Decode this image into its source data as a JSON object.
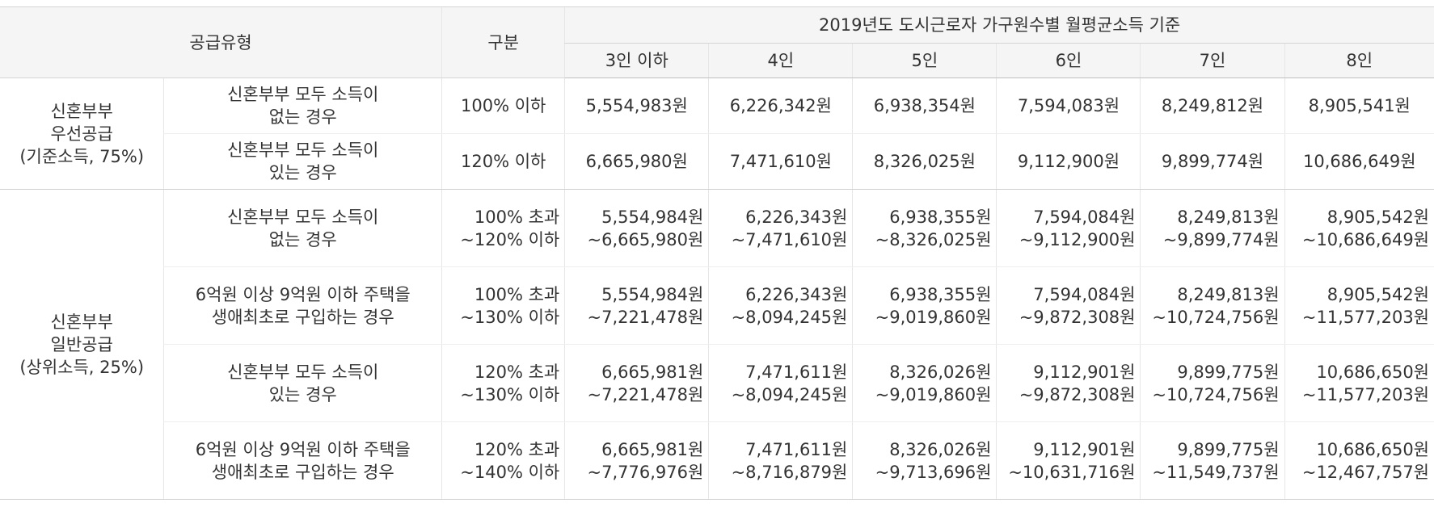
{
  "header": {
    "supply_type": "공급유형",
    "category": "구분",
    "income_basis": "2019년도 도시근로자 가구원수별 월평균소득 기준",
    "household_sizes": [
      "3인 이하",
      "4인",
      "5인",
      "6인",
      "7인",
      "8인"
    ]
  },
  "groups": [
    {
      "label": "신혼부부\n우선공급\n(기준소득, 75%)",
      "rows": [
        {
          "condition": "신혼부부 모두 소득이\n없는 경우",
          "range": "100% 이하",
          "values": [
            "5,554,983원",
            "6,226,342원",
            "6,938,354원",
            "7,594,083원",
            "8,249,812원",
            "8,905,541원"
          ]
        },
        {
          "condition": "신혼부부 모두 소득이\n있는 경우",
          "range": "120% 이하",
          "values": [
            "6,665,980원",
            "7,471,610원",
            "8,326,025원",
            "9,112,900원",
            "9,899,774원",
            "10,686,649원"
          ]
        }
      ]
    },
    {
      "label": "신혼부부\n일반공급\n(상위소득, 25%)",
      "rows": [
        {
          "condition": "신혼부부 모두 소득이\n없는 경우",
          "range": "100% 초과\n~120% 이하",
          "values": [
            "5,554,984원\n~6,665,980원",
            "6,226,343원\n~7,471,610원",
            "6,938,355원\n~8,326,025원",
            "7,594,084원\n~9,112,900원",
            "8,249,813원\n~9,899,774원",
            "8,905,542원\n~10,686,649원"
          ]
        },
        {
          "condition": "6억원 이상 9억원 이하 주택을\n생애최초로 구입하는 경우",
          "range": "100% 초과\n~130% 이하",
          "values": [
            "5,554,984원\n~7,221,478원",
            "6,226,343원\n~8,094,245원",
            "6,938,355원\n~9,019,860원",
            "7,594,084원\n~9,872,308원",
            "8,249,813원\n~10,724,756원",
            "8,905,542원\n~11,577,203원"
          ]
        },
        {
          "condition": "신혼부부 모두 소득이\n있는 경우",
          "range": "120% 초과\n~130% 이하",
          "values": [
            "6,665,981원\n~7,221,478원",
            "7,471,611원\n~8,094,245원",
            "8,326,026원\n~9,019,860원",
            "9,112,901원\n~9,872,308원",
            "9,899,775원\n~10,724,756원",
            "10,686,650원\n~11,577,203원"
          ]
        },
        {
          "condition": "6억원 이상 9억원 이하 주택을\n생애최초로 구입하는 경우",
          "range": "120% 초과\n~140% 이하",
          "values": [
            "6,665,981원\n~7,776,976원",
            "7,471,611원\n~8,716,879원",
            "8,326,026원\n~9,713,696원",
            "9,112,901원\n~10,631,716원",
            "9,899,775원\n~11,549,737원",
            "10,686,650원\n~12,467,757원"
          ]
        }
      ]
    }
  ]
}
